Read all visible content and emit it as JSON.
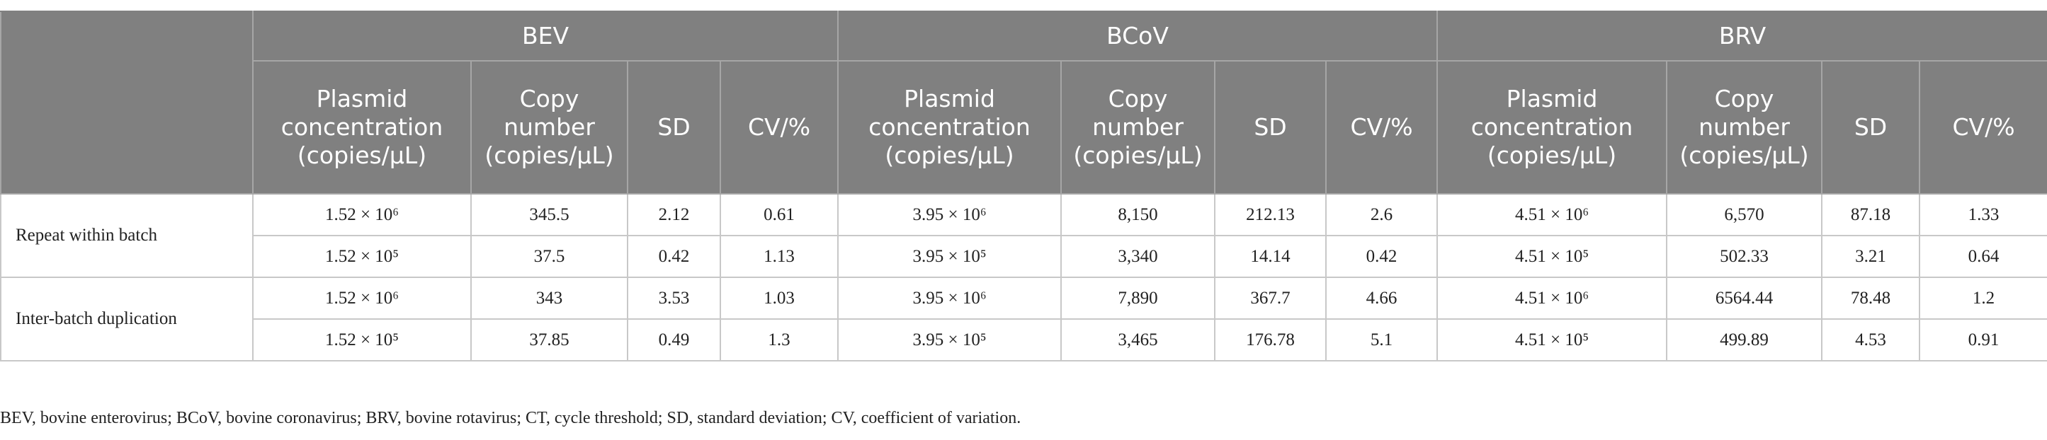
{
  "table": {
    "groups": [
      {
        "name": "BEV",
        "columns": [
          "Plasmid concentration (copies/μL)",
          "Copy number (copies/μL)",
          "SD",
          "CV/%"
        ]
      },
      {
        "name": "BCoV",
        "columns": [
          "Plasmid concentration (copies/μL)",
          "Copy number (copies/μL)",
          "SD",
          "CV/%"
        ]
      },
      {
        "name": "BRV",
        "columns": [
          "Plasmid concentration (copies/μL)",
          "Copy number (copies/μL)",
          "SD",
          "CV/%"
        ]
      }
    ],
    "row_groups": [
      {
        "label": "Repeat within batch",
        "rows": [
          [
            "1.52 × 10⁶",
            "345.5",
            "2.12",
            "0.61",
            "3.95 × 10⁶",
            "8,150",
            "212.13",
            "2.6",
            "4.51 × 10⁶",
            "6,570",
            "87.18",
            "1.33"
          ],
          [
            "1.52 × 10⁵",
            "37.5",
            "0.42",
            "1.13",
            "3.95 × 10⁵",
            "3,340",
            "14.14",
            "0.42",
            "4.51 × 10⁵",
            "502.33",
            "3.21",
            "0.64"
          ]
        ]
      },
      {
        "label": "Inter-batch duplication",
        "rows": [
          [
            "1.52 × 10⁶",
            "343",
            "3.53",
            "1.03",
            "3.95 × 10⁶",
            "7,890",
            "367.7",
            "4.66",
            "4.51 × 10⁶",
            "6564.44",
            "78.48",
            "1.2"
          ],
          [
            "1.52 × 10⁵",
            "37.85",
            "0.49",
            "1.3",
            "3.95 × 10⁵",
            "3,465",
            "176.78",
            "5.1",
            "4.51 × 10⁵",
            "499.89",
            "4.53",
            "0.91"
          ]
        ]
      }
    ],
    "footnote": "BEV, bovine enterovirus; BCoV, bovine coronavirus; BRV, bovine rotavirus; CT, cycle threshold; SD, standard deviation; CV, coefficient of variation."
  }
}
